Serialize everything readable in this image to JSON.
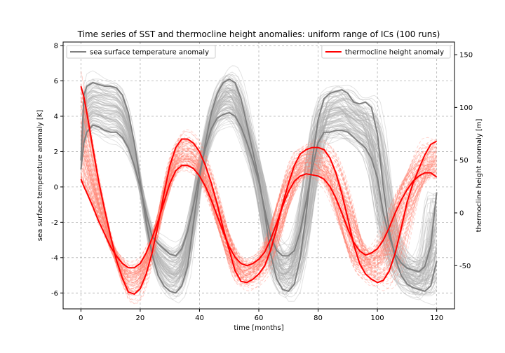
{
  "chart_data": {
    "type": "line",
    "title": "Time series of SST and thermocline height anomalies: uniform range of ICs (100 runs)",
    "xlabel": "time [months]",
    "ylabel_left": "sea surface temperature anomaly [K]",
    "ylabel_right": "thermocline height anomaly [m]",
    "xlim": [
      -6,
      126
    ],
    "ylim_left": [
      -6.9,
      8.2
    ],
    "ylim_right": [
      -91,
      162
    ],
    "xticks": [
      0,
      20,
      40,
      60,
      80,
      100,
      120
    ],
    "yticks_left": [
      -6,
      -4,
      -2,
      0,
      2,
      4,
      6,
      8
    ],
    "yticks_right": [
      -50,
      0,
      50,
      100,
      150
    ],
    "grid": true,
    "legend_left": {
      "label": "sea surface temperature anomaly",
      "color": "#808080",
      "placement": "upper-left"
    },
    "legend_right": {
      "label": "thermocline height anomaly",
      "color": "#ff0000",
      "placement": "upper-right"
    },
    "ensemble_runs": 100,
    "colors": {
      "sst_mean": "#808080",
      "sst_ensemble": "#b0b0b0",
      "h_mean": "#ff0000",
      "h_ensemble": "#ff8070"
    },
    "series": [
      {
        "axis": "left",
        "color": "#808080",
        "x": [
          0,
          1,
          2,
          4,
          6,
          8,
          10,
          12,
          14,
          16,
          18,
          20,
          22,
          24,
          26,
          28,
          30,
          32,
          34,
          36,
          38,
          40,
          42,
          44,
          46,
          48,
          50,
          52,
          54,
          56,
          58,
          60,
          62,
          64,
          66,
          68,
          70,
          72,
          74,
          76,
          78,
          80,
          82,
          84,
          86,
          88,
          90,
          92,
          94,
          96,
          98,
          100,
          102,
          104,
          106,
          108,
          110,
          112,
          114,
          116,
          118,
          120
        ],
        "values": [
          1.5,
          5.2,
          5.7,
          5.9,
          5.8,
          5.7,
          5.7,
          5.6,
          5.2,
          4.2,
          2.5,
          0.3,
          -2.0,
          -3.8,
          -5.0,
          -5.6,
          -5.9,
          -6.0,
          -5.6,
          -4.5,
          -2.0,
          0.5,
          2.5,
          4.2,
          5.3,
          5.9,
          6.1,
          5.9,
          5.0,
          3.5,
          2.0,
          0.5,
          -1.5,
          -3.8,
          -5.2,
          -5.8,
          -5.9,
          -5.5,
          -4.0,
          -1.5,
          1.5,
          3.8,
          5.0,
          5.3,
          5.4,
          5.5,
          5.3,
          4.8,
          4.7,
          4.8,
          4.5,
          3.0,
          0.0,
          -2.5,
          -4.0,
          -5.0,
          -5.5,
          -5.7,
          -5.8,
          -5.9,
          -5.6,
          -4.2
        ]
      },
      {
        "axis": "left",
        "color": "#808080",
        "x": [
          0,
          1,
          2,
          4,
          6,
          8,
          10,
          12,
          14,
          16,
          18,
          20,
          22,
          24,
          26,
          28,
          30,
          32,
          34,
          36,
          38,
          40,
          42,
          44,
          46,
          48,
          50,
          52,
          54,
          56,
          58,
          60,
          62,
          64,
          66,
          68,
          70,
          72,
          74,
          76,
          78,
          80,
          82,
          84,
          86,
          88,
          90,
          92,
          94,
          96,
          98,
          100,
          102,
          104,
          106,
          108,
          110,
          112,
          114,
          116,
          118,
          120
        ],
        "values": [
          1.0,
          2.5,
          3.1,
          3.5,
          3.4,
          3.2,
          3.1,
          3.1,
          2.8,
          2.2,
          1.2,
          0.0,
          -1.5,
          -2.8,
          -3.2,
          -3.5,
          -3.8,
          -3.9,
          -3.5,
          -2.5,
          -1.0,
          0.8,
          2.2,
          3.3,
          3.9,
          4.1,
          4.2,
          4.0,
          3.4,
          2.5,
          1.5,
          0.3,
          -1.3,
          -2.8,
          -3.6,
          -3.9,
          -3.9,
          -3.6,
          -2.5,
          -0.8,
          1.0,
          2.5,
          3.1,
          3.1,
          3.2,
          3.2,
          3.1,
          2.8,
          2.5,
          2.2,
          1.6,
          0.5,
          -1.5,
          -2.8,
          -3.8,
          -4.3,
          -4.6,
          -4.7,
          -4.8,
          -4.5,
          -3.3,
          -0.3
        ]
      },
      {
        "axis": "right",
        "color": "#ff0000",
        "x": [
          0,
          1,
          2,
          4,
          6,
          8,
          10,
          12,
          14,
          16,
          18,
          20,
          22,
          24,
          26,
          28,
          30,
          32,
          34,
          36,
          38,
          40,
          42,
          44,
          46,
          48,
          50,
          52,
          54,
          56,
          58,
          60,
          62,
          64,
          66,
          68,
          70,
          72,
          74,
          76,
          78,
          80,
          82,
          84,
          86,
          88,
          90,
          92,
          94,
          96,
          98,
          100,
          102,
          104,
          106,
          108,
          110,
          112,
          114,
          116,
          118,
          120
        ],
        "values": [
          120,
          110,
          95,
          62,
          30,
          3,
          -22,
          -45,
          -62,
          -75,
          -77,
          -72,
          -58,
          -38,
          -12,
          18,
          45,
          62,
          70,
          70,
          66,
          58,
          45,
          28,
          8,
          -15,
          -35,
          -55,
          -65,
          -66,
          -63,
          -58,
          -50,
          -35,
          -15,
          8,
          28,
          45,
          56,
          60,
          62,
          62,
          60,
          52,
          38,
          18,
          -5,
          -30,
          -48,
          -58,
          -63,
          -66,
          -64,
          -55,
          -38,
          -15,
          10,
          28,
          42,
          55,
          65,
          68
        ]
      },
      {
        "axis": "right",
        "color": "#ff0000",
        "x": [
          0,
          1,
          2,
          4,
          6,
          8,
          10,
          12,
          14,
          16,
          18,
          20,
          22,
          24,
          26,
          28,
          30,
          32,
          34,
          36,
          38,
          40,
          42,
          44,
          46,
          48,
          50,
          52,
          54,
          56,
          58,
          60,
          62,
          64,
          66,
          68,
          70,
          72,
          74,
          76,
          78,
          80,
          82,
          84,
          86,
          88,
          90,
          92,
          94,
          96,
          98,
          100,
          102,
          104,
          106,
          108,
          110,
          112,
          114,
          116,
          118,
          120
        ],
        "values": [
          32,
          25,
          19,
          6,
          -8,
          -20,
          -32,
          -41,
          -48,
          -52,
          -52,
          -48,
          -38,
          -24,
          -8,
          10,
          28,
          40,
          45,
          45,
          42,
          35,
          25,
          12,
          -3,
          -18,
          -32,
          -42,
          -48,
          -50,
          -48,
          -44,
          -37,
          -25,
          -10,
          6,
          20,
          30,
          35,
          37,
          36,
          35,
          32,
          25,
          14,
          0,
          -15,
          -28,
          -36,
          -40,
          -38,
          -34,
          -26,
          -14,
          0,
          12,
          22,
          30,
          35,
          38,
          38,
          34
        ]
      }
    ]
  }
}
